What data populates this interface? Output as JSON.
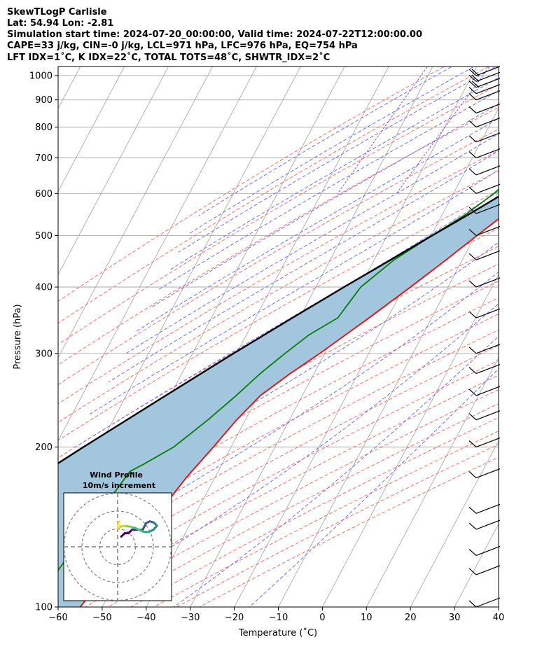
{
  "header": {
    "line1": "SkewTLogP Carlisle",
    "line2": "Lat: 54.94   Lon: -2.81",
    "line3": "Simulation start time: 2024-07-20_00:00:00, Valid time: 2024-07-22T12:00:00.00",
    "line4": "CAPE=33 j/kg, CIN=-0 j/kg, LCL=971 hPa, LFC=976 hPa, EQ=754 hPa",
    "line5": "LFT IDX=1˚C, K IDX=22˚C, TOTAL TOTS=48˚C, SHWTR_IDX=2˚C"
  },
  "chart_data": {
    "type": "line",
    "subtype": "skew-t log-p diagram",
    "xlabel": "Temperature (˚C)",
    "ylabel": "Pressure (hPa)",
    "xlim": [
      -60,
      40
    ],
    "ylim": [
      1040,
      100
    ],
    "y_scale": "log",
    "x_ticks": [
      -60,
      -50,
      -40,
      -30,
      -20,
      -10,
      0,
      10,
      20,
      30,
      40
    ],
    "x_tick_labels": [
      "−60",
      "−50",
      "−40",
      "−30",
      "−20",
      "−10",
      "0",
      "10",
      "20",
      "30",
      "40"
    ],
    "y_ticks": [
      100,
      200,
      300,
      400,
      500,
      600,
      700,
      800,
      900,
      1000
    ],
    "grid": true,
    "colors": {
      "temperature": "#ff0000",
      "dewpoint": "#008000",
      "parcel": "#000000",
      "cape_fill": "#a3c6df",
      "dry_adiabats": "#ff6b6b",
      "moist_adiabats": "#6b6bff",
      "mixing_ratio": "#9b4fcb",
      "isotherms": "#aaaaaa"
    },
    "series": [
      {
        "kind": "temperature",
        "points": [
          [
            1000,
            15.9
          ],
          [
            975,
            15.0
          ],
          [
            950,
            13.8
          ],
          [
            925,
            12.9
          ],
          [
            900,
            11.8
          ],
          [
            850,
            10.4
          ],
          [
            800,
            8.6
          ],
          [
            775,
            7.6
          ],
          [
            750,
            6.8
          ],
          [
            700,
            4.3
          ],
          [
            650,
            1.0
          ],
          [
            600,
            -2.3
          ],
          [
            550,
            -5.8
          ],
          [
            500,
            -9.6
          ],
          [
            450,
            -13.7
          ],
          [
            400,
            -18.5
          ],
          [
            350,
            -24.2
          ],
          [
            300,
            -31.1
          ],
          [
            275,
            -35.4
          ],
          [
            250,
            -39.5
          ],
          [
            225,
            -42.0
          ],
          [
            200,
            -44.0
          ],
          [
            175,
            -46.5
          ],
          [
            150,
            -48.5
          ],
          [
            140,
            -50.0
          ],
          [
            125,
            -52.0
          ],
          [
            115,
            -53.0
          ],
          [
            100,
            -55.0
          ]
        ]
      },
      {
        "kind": "dewpoint",
        "points": [
          [
            1000,
            14.5
          ],
          [
            975,
            14.3
          ],
          [
            950,
            13.5
          ],
          [
            925,
            12.3
          ],
          [
            900,
            11.2
          ],
          [
            850,
            8.8
          ],
          [
            800,
            6.8
          ],
          [
            775,
            3.0
          ],
          [
            750,
            -1.0
          ],
          [
            700,
            -5.8
          ],
          [
            650,
            -8.4
          ],
          [
            600,
            -10.8
          ],
          [
            550,
            -14.5
          ],
          [
            500,
            -19.8
          ],
          [
            450,
            -25.5
          ],
          [
            400,
            -29.8
          ],
          [
            350,
            -31.3
          ],
          [
            325,
            -35.8
          ],
          [
            300,
            -39.0
          ],
          [
            275,
            -42.2
          ],
          [
            250,
            -45.0
          ],
          [
            225,
            -48.5
          ],
          [
            200,
            -53.0
          ],
          [
            185,
            -58.0
          ],
          [
            180,
            -60.0
          ],
          [
            150,
            -62.0
          ],
          [
            100,
            -66.0
          ]
        ]
      },
      {
        "kind": "parcel",
        "points": [
          [
            1013,
            17.5
          ],
          [
            1000,
            15.8
          ],
          [
            975,
            15.0
          ],
          [
            950,
            14.1
          ],
          [
            900,
            11.9
          ],
          [
            850,
            9.5
          ],
          [
            800,
            6.9
          ],
          [
            750,
            3.7
          ],
          [
            700,
            0.0
          ],
          [
            650,
            -4.1
          ],
          [
            600,
            -8.6
          ],
          [
            550,
            -13.8
          ],
          [
            500,
            -19.8
          ],
          [
            450,
            -26.3
          ],
          [
            400,
            -33.6
          ],
          [
            350,
            -41.6
          ],
          [
            300,
            -50.7
          ],
          [
            250,
            -61.0
          ],
          [
            200,
            -73.5
          ],
          [
            150,
            -89.0
          ],
          [
            100,
            -110.0
          ]
        ]
      }
    ],
    "wind_barbs": [
      {
        "p": 1000,
        "barbs": 2
      },
      {
        "p": 975,
        "barbs": 2
      },
      {
        "p": 950,
        "barbs": 2
      },
      {
        "p": 925,
        "barbs": 1
      },
      {
        "p": 900,
        "barbs": 1
      },
      {
        "p": 850,
        "barbs": 1
      },
      {
        "p": 800,
        "barbs": 1
      },
      {
        "p": 750,
        "barbs": 1
      },
      {
        "p": 700,
        "barbs": 1
      },
      {
        "p": 650,
        "barbs": 1
      },
      {
        "p": 600,
        "barbs": 1
      },
      {
        "p": 550,
        "barbs": 1
      },
      {
        "p": 500,
        "barbs": 1
      },
      {
        "p": 450,
        "barbs": 1
      },
      {
        "p": 400,
        "barbs": 1
      },
      {
        "p": 350,
        "barbs": 1
      },
      {
        "p": 300,
        "barbs": 1
      },
      {
        "p": 275,
        "barbs": 1
      },
      {
        "p": 250,
        "barbs": 1
      },
      {
        "p": 225,
        "barbs": 1
      },
      {
        "p": 200,
        "barbs": 1
      },
      {
        "p": 175,
        "barbs": 1
      },
      {
        "p": 150,
        "barbs": 1
      },
      {
        "p": 140,
        "barbs": 1
      },
      {
        "p": 125,
        "barbs": 1
      },
      {
        "p": 115,
        "barbs": 1
      },
      {
        "p": 100,
        "barbs": 1
      }
    ],
    "inset": {
      "title": "Wind Profile",
      "subtitle": "10m/s increment",
      "rings": [
        10,
        20,
        30
      ],
      "hodograph": [
        [
          2,
          3
        ],
        [
          4,
          4
        ],
        [
          6,
          4
        ],
        [
          8,
          5
        ],
        [
          10,
          5
        ],
        [
          12,
          5
        ],
        [
          14,
          5
        ],
        [
          15,
          6
        ],
        [
          16,
          7
        ],
        [
          18,
          7.5
        ],
        [
          20,
          7.2
        ],
        [
          21,
          6.8
        ],
        [
          22,
          6.2
        ],
        [
          20,
          5.0
        ],
        [
          18,
          4.5
        ],
        [
          16,
          4.3
        ],
        [
          14,
          4.5
        ],
        [
          12,
          5.0
        ],
        [
          10,
          5.5
        ],
        [
          8,
          5.8
        ],
        [
          6,
          6.0
        ],
        [
          4,
          6.2
        ],
        [
          2,
          6.0
        ],
        [
          0,
          5.5
        ],
        [
          0.5,
          7.0
        ],
        [
          1,
          7.5
        ]
      ]
    }
  }
}
